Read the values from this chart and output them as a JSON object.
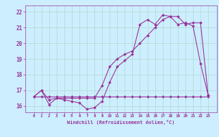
{
  "title": "",
  "xlabel": "Windchill (Refroidissement éolien,°C)",
  "bg_color": "#cceeff",
  "grid_color": "#b0d8cc",
  "line_color": "#993399",
  "hours": [
    0,
    1,
    2,
    3,
    4,
    5,
    6,
    7,
    8,
    9,
    10,
    11,
    12,
    13,
    14,
    15,
    16,
    17,
    18,
    19,
    20,
    21,
    22,
    23
  ],
  "series1": [
    16.6,
    17.0,
    16.1,
    16.5,
    16.4,
    16.3,
    16.2,
    15.8,
    15.9,
    16.3,
    17.5,
    18.5,
    18.9,
    19.3,
    21.2,
    21.5,
    21.2,
    21.8,
    21.7,
    21.2,
    21.3,
    21.1,
    18.7,
    16.7
  ],
  "series2": [
    16.6,
    17.0,
    16.4,
    16.5,
    16.5,
    16.5,
    16.5,
    16.5,
    16.5,
    17.3,
    18.5,
    19.0,
    19.3,
    19.5,
    20.0,
    20.5,
    21.0,
    21.5,
    21.7,
    21.7,
    21.2,
    21.3,
    21.3,
    16.7
  ],
  "series3": [
    16.6,
    16.6,
    16.6,
    16.6,
    16.6,
    16.6,
    16.6,
    16.6,
    16.6,
    16.6,
    16.6,
    16.6,
    16.6,
    16.6,
    16.6,
    16.6,
    16.6,
    16.6,
    16.6,
    16.6,
    16.6,
    16.6,
    16.6,
    16.6
  ],
  "ylim": [
    15.6,
    22.4
  ],
  "yticks": [
    16,
    17,
    18,
    19,
    20,
    21,
    22
  ],
  "xticks": [
    0,
    1,
    2,
    3,
    4,
    5,
    6,
    7,
    8,
    9,
    10,
    11,
    12,
    13,
    14,
    15,
    16,
    17,
    18,
    19,
    20,
    21,
    22,
    23
  ]
}
